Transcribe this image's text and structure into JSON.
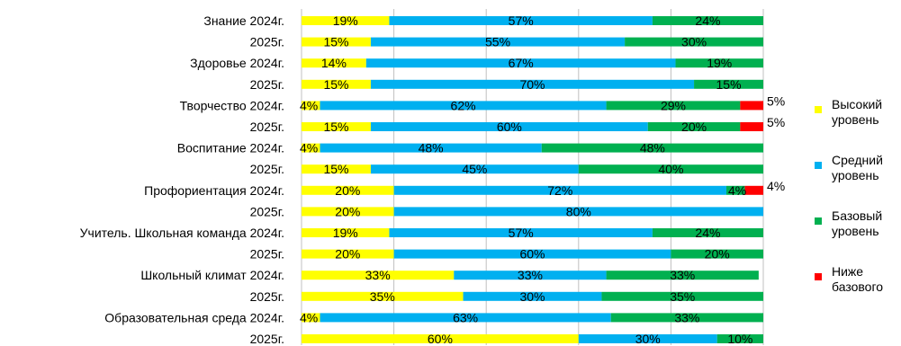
{
  "chart_data": {
    "type": "bar",
    "orientation": "horizontal",
    "stacked": true,
    "xlim": [
      0,
      100
    ],
    "grid": true,
    "legend_position": "right",
    "categories": [
      "Знание  2024г.",
      "2025г.",
      "Здоровье 2024г.",
      "2025г.",
      "Творчество 2024г.",
      "2025г.",
      "Воспитание 2024г.",
      "2025г.",
      "Профориентация 2024г.",
      "2025г.",
      "Учитель. Школьная команда 2024г.",
      "2025г.",
      "Школьный климат 2024г.",
      "2025г.",
      "Образовательная среда 2024г.",
      "2025г."
    ],
    "series": [
      {
        "name": "Высокий уровень",
        "color": "#ffff00",
        "values": [
          19,
          15,
          14,
          15,
          4,
          15,
          4,
          15,
          20,
          20,
          19,
          20,
          33,
          35,
          4,
          60
        ]
      },
      {
        "name": "Средний уровень",
        "color": "#00b0f0",
        "values": [
          57,
          55,
          67,
          70,
          62,
          60,
          48,
          45,
          72,
          80,
          57,
          60,
          33,
          30,
          63,
          30
        ]
      },
      {
        "name": "Базовый уровень",
        "color": "#00b050",
        "values": [
          24,
          30,
          19,
          15,
          29,
          20,
          48,
          40,
          4,
          0,
          24,
          20,
          33,
          35,
          33,
          10
        ]
      },
      {
        "name": "Ниже базового",
        "color": "#ff0000",
        "values": [
          0,
          0,
          0,
          0,
          5,
          5,
          0,
          0,
          4,
          0,
          0,
          0,
          0,
          0,
          0,
          0
        ]
      }
    ],
    "value_labels": [
      [
        "19%",
        "57%",
        "24%",
        ""
      ],
      [
        "15%",
        "55%",
        "30%",
        ""
      ],
      [
        "14%",
        "67%",
        "19%",
        ""
      ],
      [
        "15%",
        "70%",
        "15%",
        ""
      ],
      [
        "4%",
        "62%",
        "29%",
        "5%"
      ],
      [
        "15%",
        "60%",
        "20%",
        "5%"
      ],
      [
        "4%",
        "48%",
        "48%",
        ""
      ],
      [
        "15%",
        "45%",
        "40%",
        ""
      ],
      [
        "20%",
        "72%",
        "4%",
        "4%"
      ],
      [
        "20%",
        "80%",
        "",
        ""
      ],
      [
        "19%",
        "57%",
        "24%",
        ""
      ],
      [
        "20%",
        "60%",
        "20%",
        ""
      ],
      [
        "33%",
        "33%",
        "33%",
        ""
      ],
      [
        "35%",
        "30%",
        "35%",
        ""
      ],
      [
        "4%",
        "63%",
        "33%",
        ""
      ],
      [
        "60%",
        "30%",
        "10%",
        ""
      ]
    ]
  },
  "legend": [
    {
      "lines": [
        "Высокий",
        "уровень"
      ],
      "color": "#ffff00"
    },
    {
      "lines": [
        "Средний",
        "уровень"
      ],
      "color": "#00b0f0"
    },
    {
      "lines": [
        "Базовый",
        "уровень"
      ],
      "color": "#00b050"
    },
    {
      "lines": [
        "Ниже",
        "базового"
      ],
      "color": "#ff0000"
    }
  ]
}
